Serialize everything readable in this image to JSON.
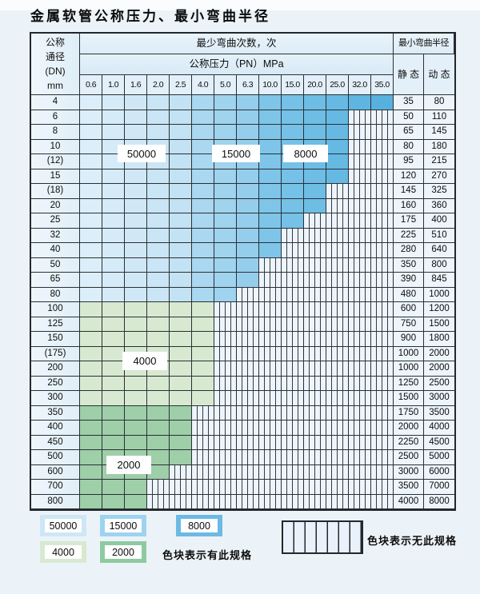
{
  "title": "金属软管公称压力、最小弯曲半径",
  "table": {
    "header": {
      "dn_lines": [
        "公称",
        "通径",
        "(DN)",
        "mm"
      ],
      "cycles_label": "最少弯曲次数，次",
      "pressure_label": "公称压力（PN）MPa",
      "radius_label": "最小弯曲半径",
      "static_label": "静 态",
      "dynamic_label": "动 态",
      "pressures": [
        "0.6",
        "1.0",
        "1.6",
        "2.0",
        "2.5",
        "4.0",
        "5.0",
        "6.3",
        "10.0",
        "15.0",
        "20.0",
        "25.0",
        "32.0",
        "35.0"
      ]
    },
    "rows": [
      {
        "dn": "4",
        "colored": 14,
        "zone": "blue",
        "static": "35",
        "dynamic": "80"
      },
      {
        "dn": "6",
        "colored": 12,
        "zone": "blue",
        "static": "50",
        "dynamic": "110"
      },
      {
        "dn": "8",
        "colored": 12,
        "zone": "blue",
        "static": "65",
        "dynamic": "145"
      },
      {
        "dn": "10",
        "colored": 12,
        "zone": "blue",
        "static": "80",
        "dynamic": "180"
      },
      {
        "dn": "(12)",
        "colored": 12,
        "zone": "blue",
        "static": "95",
        "dynamic": "215"
      },
      {
        "dn": "15",
        "colored": 12,
        "zone": "blue",
        "static": "120",
        "dynamic": "270"
      },
      {
        "dn": "(18)",
        "colored": 11,
        "zone": "blue",
        "static": "145",
        "dynamic": "325"
      },
      {
        "dn": "20",
        "colored": 11,
        "zone": "blue",
        "static": "160",
        "dynamic": "360"
      },
      {
        "dn": "25",
        "colored": 10,
        "zone": "blue",
        "static": "175",
        "dynamic": "400"
      },
      {
        "dn": "32",
        "colored": 9,
        "zone": "blue",
        "static": "225",
        "dynamic": "510"
      },
      {
        "dn": "40",
        "colored": 9,
        "zone": "blue",
        "static": "280",
        "dynamic": "640"
      },
      {
        "dn": "50",
        "colored": 8,
        "zone": "blue",
        "static": "350",
        "dynamic": "800"
      },
      {
        "dn": "65",
        "colored": 8,
        "zone": "blue",
        "static": "390",
        "dynamic": "845"
      },
      {
        "dn": "80",
        "colored": 7,
        "zone": "blue",
        "static": "480",
        "dynamic": "1000"
      },
      {
        "dn": "100",
        "colored": 6,
        "zone": "g4",
        "static": "600",
        "dynamic": "1200"
      },
      {
        "dn": "125",
        "colored": 6,
        "zone": "g4",
        "static": "750",
        "dynamic": "1500"
      },
      {
        "dn": "150",
        "colored": 6,
        "zone": "g4",
        "static": "900",
        "dynamic": "1800"
      },
      {
        "dn": "(175)",
        "colored": 6,
        "zone": "g4",
        "static": "1000",
        "dynamic": "2000"
      },
      {
        "dn": "200",
        "colored": 6,
        "zone": "g4",
        "static": "1000",
        "dynamic": "2000"
      },
      {
        "dn": "250",
        "colored": 6,
        "zone": "g4",
        "static": "1250",
        "dynamic": "2500"
      },
      {
        "dn": "300",
        "colored": 6,
        "zone": "g4",
        "static": "1500",
        "dynamic": "3000"
      },
      {
        "dn": "350",
        "colored": 5,
        "zone": "g2",
        "static": "1750",
        "dynamic": "3500"
      },
      {
        "dn": "400",
        "colored": 5,
        "zone": "g2",
        "static": "2000",
        "dynamic": "4000"
      },
      {
        "dn": "450",
        "colored": 5,
        "zone": "g2",
        "static": "2250",
        "dynamic": "4500"
      },
      {
        "dn": "500",
        "colored": 5,
        "zone": "g2",
        "static": "2500",
        "dynamic": "5000"
      },
      {
        "dn": "600",
        "colored": 4,
        "zone": "g2",
        "static": "3000",
        "dynamic": "6000"
      },
      {
        "dn": "700",
        "colored": 3,
        "zone": "g2",
        "static": "3500",
        "dynamic": "7000"
      },
      {
        "dn": "800",
        "colored": 3,
        "zone": "g2",
        "static": "4000",
        "dynamic": "8000"
      }
    ]
  },
  "colors": {
    "blue_columns": [
      "#dceef9",
      "#d6ebf8",
      "#d0e8f6",
      "#cae5f5",
      "#c3e2f4",
      "#a9d8f0",
      "#9fd3ee",
      "#95ceec",
      "#7ec5e9",
      "#76c1e7",
      "#6ebde5",
      "#66b9e3",
      "#5fb5e1",
      "#57b1df"
    ],
    "green_4000": "#d8e9d1",
    "green_2000": "#9ecfa8",
    "hatch_bg": "#edf4fb",
    "hatch_line": "#343a40"
  },
  "overlays": {
    "l50000": "50000",
    "l15000": "15000",
    "l8000": "8000",
    "l4000": "4000",
    "l2000": "2000"
  },
  "legend": {
    "items": [
      {
        "label": "50000",
        "color": "#cde7f7"
      },
      {
        "label": "15000",
        "color": "#9ed3ef"
      },
      {
        "label": "8000",
        "color": "#6cbae4"
      },
      {
        "label": "4000",
        "color": "#d8e9d1"
      },
      {
        "label": "2000",
        "color": "#8ecaa0"
      }
    ],
    "present_note": "色块表示有此规格",
    "absent_note": "色块表示无此规格"
  }
}
